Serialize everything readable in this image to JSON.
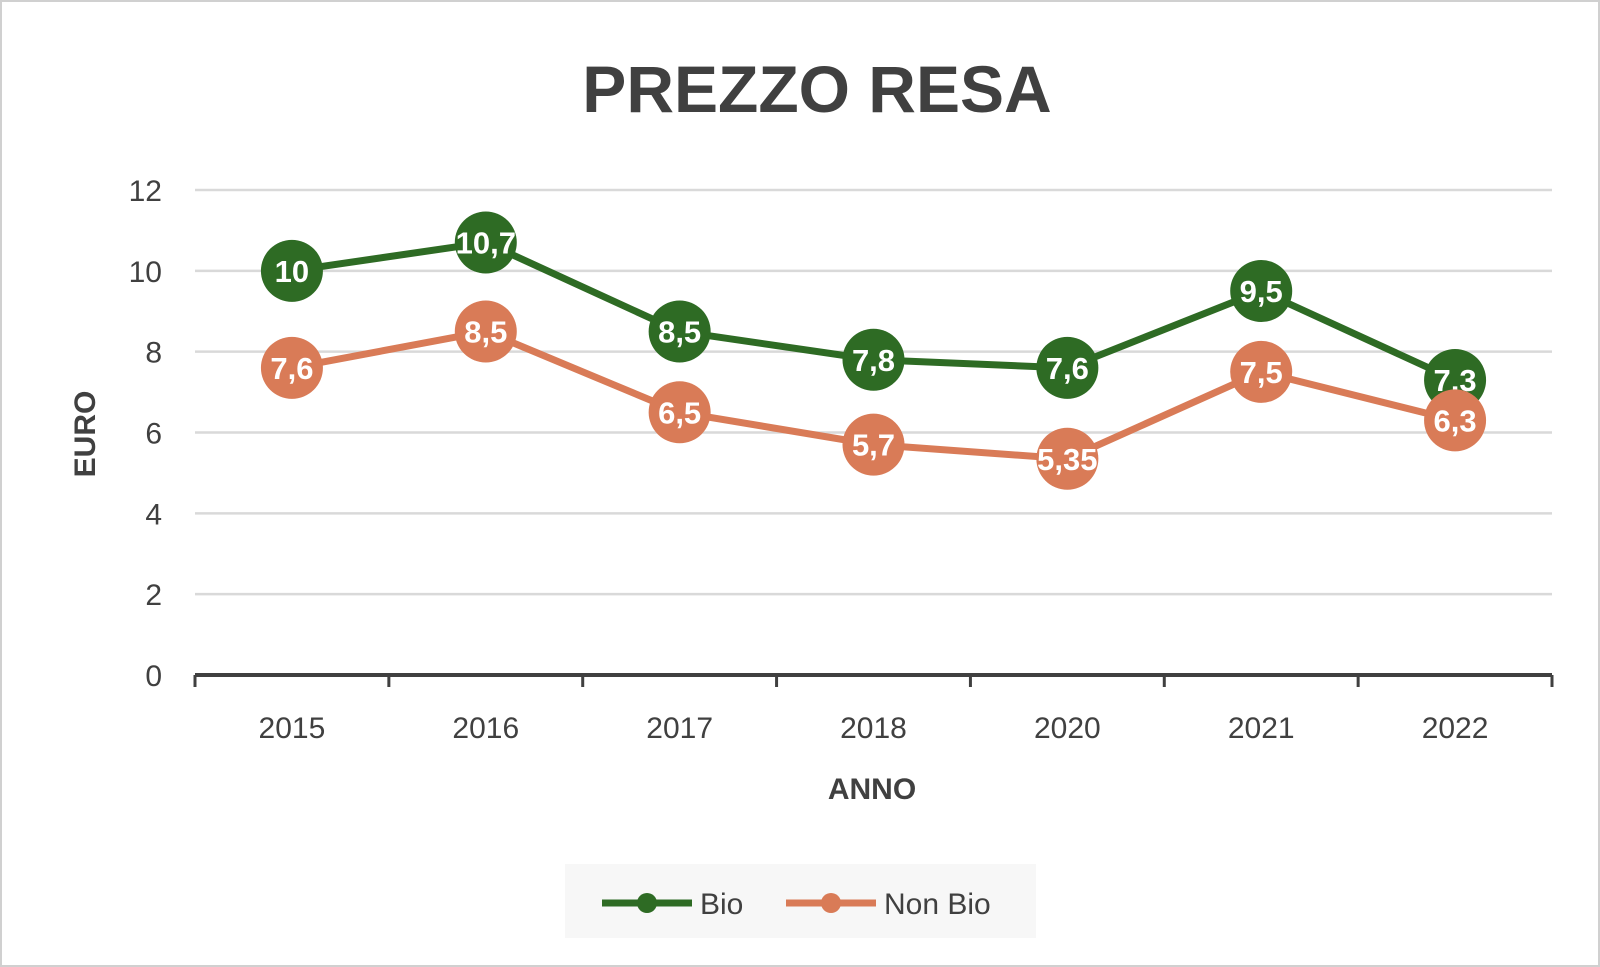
{
  "chart_data": {
    "type": "line",
    "title": "PREZZO RESA",
    "xlabel": "ANNO",
    "ylabel": "EURO",
    "categories": [
      "2015",
      "2016",
      "2017",
      "2018",
      "2020",
      "2021",
      "2022"
    ],
    "ylim": [
      0,
      12
    ],
    "yticks": [
      0,
      2,
      4,
      6,
      8,
      10,
      12
    ],
    "grid": true,
    "legend_position": "bottom",
    "series": [
      {
        "name": "Bio",
        "color": "#2e6b24",
        "values": [
          10,
          10.7,
          8.5,
          7.8,
          7.6,
          9.5,
          7.3
        ],
        "labels": [
          "10",
          "10,7",
          "8,5",
          "7,8",
          "7,6",
          "9,5",
          "7,3"
        ]
      },
      {
        "name": "Non Bio",
        "color": "#d97b57",
        "values": [
          7.6,
          8.5,
          6.5,
          5.7,
          5.35,
          7.5,
          6.3
        ],
        "labels": [
          "7,6",
          "8,5",
          "6,5",
          "5,7",
          "5,35",
          "7,5",
          "6,3"
        ]
      }
    ]
  }
}
